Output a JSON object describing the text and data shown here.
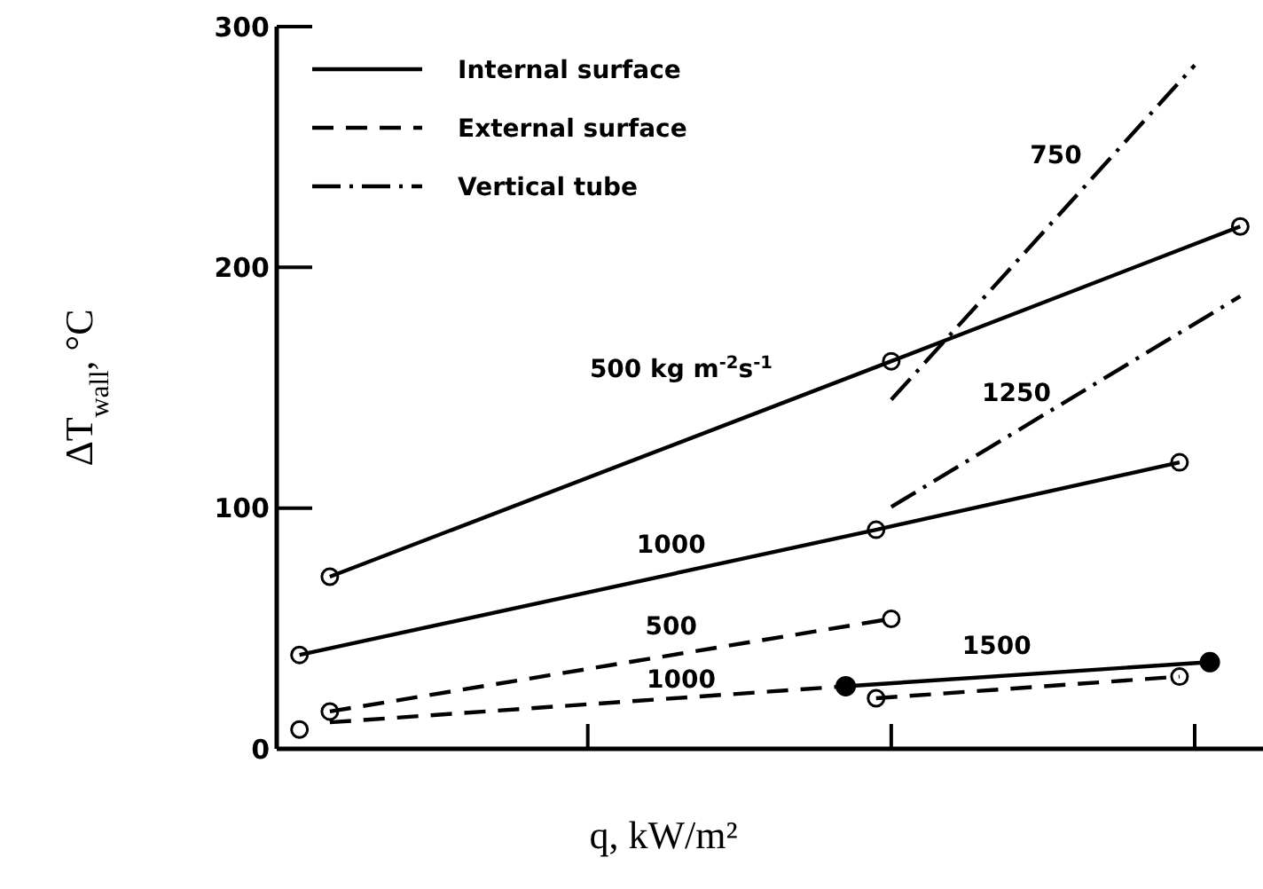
{
  "chart_data": {
    "type": "line",
    "xlabel": "q, kW/m²",
    "ylabel": "ΔT$_{wall}$, °C",
    "categories": [
      null,
      null,
      null,
      null,
      null,
      null,
      null,
      null,
      null,
      null,
      null,
      null,
      null,
      null,
      null,
      null,
      null,
      null,
      null,
      null,
      null,
      null,
      null,
      null,
      null,
      null,
      null,
      null,
      null,
      null,
      null,
      null,
      null,
      null,
      null,
      null,
      null,
      null,
      null,
      null,
      null,
      null,
      null,
      null,
      null,
      null,
      null,
      null,
      null,
      null,
      null,
      null,
      null,
      null,
      null,
      null,
      null,
      null,
      null,
      null,
      null,
      null,
      null,
      null,
      null
    ],
    "ylim": [
      0,
      300
    ],
    "yticks": [
      0,
      100,
      200,
      300
    ],
    "tick_labels": "y",
    "legend": "top left",
    "marker": "none",
    "series": [
      {
        "name": "Internal surface",
        "color": "#000000",
        "line_style": "solid",
        "marker": "circle",
        "values": [
          null,
          null,
          null,
          71.5,
          null,
          null,
          null,
          null,
          null,
          null,
          null,
          null,
          null,
          null,
          null,
          null,
          null,
          null,
          null,
          null,
          null,
          null,
          null,
          null,
          null,
          null,
          null,
          null,
          null,
          null,
          null,
          null,
          null,
          null,
          null,
          null,
          null,
          null,
          null,
          null,
          161,
          null,
          null,
          null,
          null,
          null,
          null,
          null,
          null,
          null,
          null,
          null,
          null,
          null,
          null,
          null,
          null,
          null,
          null,
          null,
          null,
          null,
          null,
          217,
          null
        ]
      },
      {
        "color": "#000000",
        "line_style": "solid",
        "marker": "circle",
        "values": [
          null,
          39,
          null,
          null,
          null,
          null,
          null,
          null,
          null,
          null,
          null,
          null,
          null,
          null,
          null,
          null,
          null,
          null,
          null,
          null,
          null,
          null,
          null,
          null,
          null,
          null,
          null,
          null,
          null,
          null,
          null,
          null,
          null,
          null,
          null,
          null,
          null,
          null,
          null,
          91,
          null,
          null,
          null,
          null,
          null,
          null,
          null,
          null,
          null,
          null,
          null,
          null,
          null,
          null,
          null,
          null,
          null,
          null,
          null,
          119,
          null,
          null,
          null,
          null,
          null
        ]
      },
      {
        "color": "#000000",
        "line_style": "solid",
        "values": [
          null,
          null,
          null,
          null,
          null,
          null,
          null,
          null,
          null,
          null,
          null,
          null,
          null,
          null,
          null,
          null,
          null,
          null,
          null,
          null,
          null,
          null,
          null,
          null,
          null,
          null,
          null,
          null,
          null,
          null,
          null,
          null,
          null,
          null,
          null,
          null,
          null,
          26,
          null,
          null,
          null,
          null,
          null,
          null,
          null,
          null,
          null,
          null,
          null,
          null,
          null,
          null,
          null,
          null,
          null,
          null,
          null,
          null,
          null,
          null,
          null,
          36,
          null,
          null,
          null
        ]
      },
      {
        "name": "External surface",
        "color": "#000000",
        "line_style": "dashed",
        "marker": "circle",
        "values": [
          null,
          null,
          null,
          15.5,
          null,
          null,
          null,
          null,
          null,
          null,
          null,
          null,
          null,
          null,
          null,
          null,
          null,
          null,
          null,
          null,
          null,
          null,
          null,
          null,
          null,
          null,
          null,
          null,
          null,
          null,
          null,
          null,
          null,
          null,
          null,
          null,
          null,
          null,
          null,
          null,
          54,
          null,
          null,
          null,
          null,
          null,
          null,
          null,
          null,
          null,
          null,
          null,
          null,
          null,
          null,
          null,
          null,
          null,
          null,
          null,
          null,
          null,
          null,
          null,
          null
        ]
      },
      {
        "color": "#000000",
        "line_style": "dashed",
        "values": [
          null,
          null,
          null,
          11,
          null,
          null,
          null,
          null,
          null,
          null,
          null,
          null,
          null,
          null,
          null,
          null,
          null,
          null,
          null,
          null,
          null,
          null,
          null,
          null,
          null,
          null,
          null,
          null,
          null,
          null,
          null,
          null,
          null,
          null,
          null,
          null,
          null,
          26,
          null,
          null,
          null,
          null,
          null,
          null,
          null,
          null,
          null,
          null,
          null,
          null,
          null,
          null,
          null,
          null,
          null,
          null,
          null,
          null,
          null,
          null,
          null,
          null,
          null,
          null,
          null
        ]
      },
      {
        "color": "#000000",
        "line_style": "dashed",
        "marker": "circle",
        "values": [
          null,
          null,
          null,
          null,
          null,
          null,
          null,
          null,
          null,
          null,
          null,
          null,
          null,
          null,
          null,
          null,
          null,
          null,
          null,
          null,
          null,
          null,
          null,
          null,
          null,
          null,
          null,
          null,
          null,
          null,
          null,
          null,
          null,
          null,
          null,
          null,
          null,
          null,
          null,
          21,
          null,
          null,
          null,
          null,
          null,
          null,
          null,
          null,
          null,
          null,
          null,
          null,
          null,
          null,
          null,
          null,
          null,
          null,
          null,
          30,
          null,
          null,
          null,
          null,
          null
        ]
      },
      {
        "name": "Vertical tube",
        "color": "#000000",
        "line_style": "dashdot",
        "values": [
          null,
          null,
          null,
          null,
          null,
          null,
          null,
          null,
          null,
          null,
          null,
          null,
          null,
          null,
          null,
          null,
          null,
          null,
          null,
          null,
          null,
          null,
          null,
          null,
          null,
          null,
          null,
          null,
          null,
          null,
          null,
          null,
          null,
          null,
          null,
          null,
          null,
          null,
          null,
          null,
          145,
          null,
          null,
          null,
          null,
          null,
          null,
          null,
          null,
          null,
          null,
          null,
          null,
          null,
          null,
          null,
          null,
          null,
          null,
          null,
          284,
          null,
          null,
          null,
          null
        ]
      },
      {
        "color": "#000000",
        "line_style": "dashdot",
        "values": [
          null,
          null,
          null,
          null,
          null,
          null,
          null,
          null,
          null,
          null,
          null,
          null,
          null,
          null,
          null,
          null,
          null,
          null,
          null,
          null,
          null,
          null,
          null,
          null,
          null,
          null,
          null,
          null,
          null,
          null,
          null,
          null,
          null,
          null,
          null,
          null,
          null,
          null,
          null,
          null,
          100.5,
          null,
          null,
          null,
          null,
          null,
          null,
          null,
          null,
          null,
          null,
          null,
          null,
          null,
          null,
          null,
          null,
          null,
          null,
          null,
          null,
          null,
          null,
          188,
          null
        ]
      },
      {
        "type": "scatter",
        "marker": "circle",
        "color": "#000000",
        "values": [
          null,
          null,
          null,
          null,
          null,
          null,
          null,
          null,
          null,
          null,
          null,
          null,
          null,
          null,
          null,
          null,
          null,
          null,
          null,
          null,
          null,
          null,
          null,
          null,
          null,
          null,
          null,
          null,
          null,
          null,
          null,
          null,
          null,
          null,
          null,
          null,
          null,
          26,
          null,
          null,
          null,
          null,
          null,
          null,
          null,
          null,
          null,
          null,
          null,
          null,
          null,
          null,
          null,
          null,
          null,
          null,
          null,
          null,
          null,
          null,
          null,
          36,
          null,
          null,
          null
        ]
      },
      {
        "color": "#000000",
        "marker": "circle",
        "values": [
          null,
          8,
          null,
          null,
          null,
          null,
          null,
          null,
          null,
          null,
          null,
          null,
          null,
          null,
          null,
          null,
          null,
          null,
          null,
          null,
          null,
          null,
          null,
          null,
          null,
          null,
          null,
          null,
          null,
          null,
          null,
          null,
          null,
          null,
          null,
          null,
          null,
          null,
          null,
          null,
          null,
          null,
          null,
          null,
          null,
          null,
          null,
          null,
          null,
          null,
          null,
          null,
          null,
          null,
          null,
          null,
          null,
          null,
          null,
          null,
          null,
          null,
          null,
          null,
          null
        ]
      }
    ],
    "annotations": [
      "500 kg m$^{-2}$s$^{-1}$",
      "750",
      "1250",
      "1000",
      "500",
      "1000",
      "1500"
    ]
  }
}
